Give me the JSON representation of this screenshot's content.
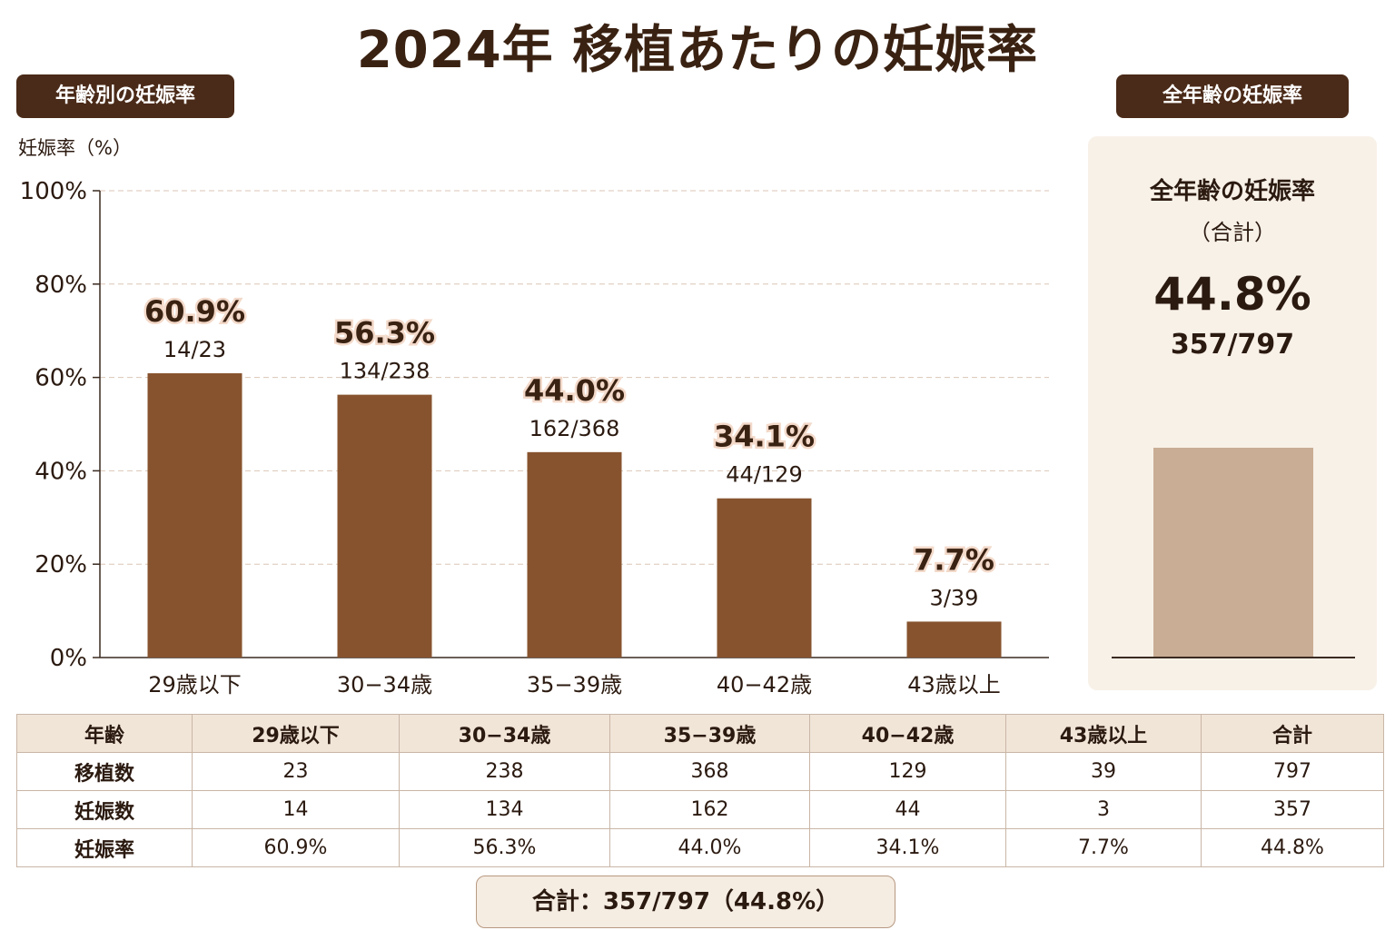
{
  "title": "2024年 移植あたりの妊娠率",
  "left_badge": "年齢別の妊娠率",
  "right_badge": "全年齢の妊娠率",
  "chart_data": {
    "type": "bar",
    "ylabel": "妊娠率（%）",
    "ylim": [
      0,
      100
    ],
    "yticks": [
      "0%",
      "20%",
      "40%",
      "60%",
      "80%",
      "100%"
    ],
    "ytick_values": [
      0,
      20,
      40,
      60,
      80,
      100
    ],
    "grid": true,
    "categories": [
      "29歳以下",
      "30−34歳",
      "35−39歳",
      "40−42歳",
      "43歳以上"
    ],
    "values": [
      60.9,
      56.3,
      44.0,
      34.1,
      7.7
    ],
    "value_labels": [
      "60.9%",
      "56.3%",
      "44.0%",
      "34.1%",
      "7.7%"
    ],
    "fraction_labels": [
      "14/23",
      "134/238",
      "162/368",
      "44/129",
      "3/39"
    ],
    "bar_color": "#87532e"
  },
  "summary_panel": {
    "title": "全年齢の妊娠率",
    "subtitle": "（合計）",
    "value": 44.8,
    "percent_label": "44.8%",
    "fraction_label": "357/797",
    "bar_color": "#c9ad94"
  },
  "table": {
    "headers": [
      "年齢",
      "29歳以下",
      "30−34歳",
      "35−39歳",
      "40−42歳",
      "43歳以上",
      "合計"
    ],
    "rows": [
      [
        "移植数",
        "23",
        "238",
        "368",
        "129",
        "39",
        "797"
      ],
      [
        "妊娠数",
        "14",
        "134",
        "162",
        "44",
        "3",
        "357"
      ],
      [
        "妊娠率",
        "60.9%",
        "56.3%",
        "44.0%",
        "34.1%",
        "7.7%",
        "44.8%"
      ]
    ]
  },
  "total_text": "合計：357/797（44.8%）"
}
